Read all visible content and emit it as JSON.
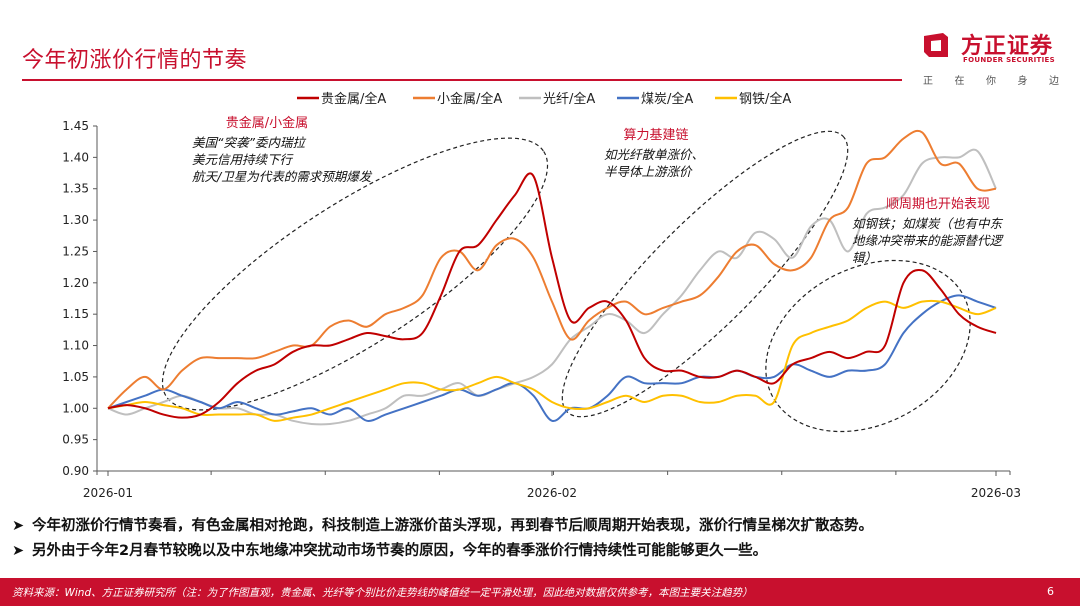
{
  "page": {
    "title": "今年初涨价行情的节奏",
    "logo_text": "方正证券",
    "logo_en": "FOUNDER SECURITIES",
    "slogan": [
      "正",
      "在",
      "你",
      "身",
      "边"
    ],
    "page_number": "6",
    "source_note": "资料来源：Wind、方正证券研究所（注：为了作图直观，贵金属、光纤等个别比价走势线的峰值经一定平滑处理，因此绝对数据仅供参考，本图主要关注趋势）"
  },
  "bullets": [
    "今年初涨价行情节奏看，有色金属相对抢跑，科技制造上游涨价苗头浮现，再到春节后顺周期开始表现，涨价行情呈梯次扩散态势。",
    "另外由于今年2月春节较晚以及中东地缘冲突扰动市场节奏的原因，今年的春季涨价行情持续性可能能够更久一些。"
  ],
  "colors": {
    "brand": "#c8102e",
    "precious": "#c00000",
    "minor": "#ed7d31",
    "fiber": "#bfbfbf",
    "coal": "#4472c4",
    "steel": "#ffc000"
  },
  "chart_data": {
    "type": "line",
    "title": "",
    "xlabel": "",
    "ylabel": "",
    "ylim": [
      0.9,
      1.45
    ],
    "yticks": [
      "1.45",
      "1.40",
      "1.35",
      "1.30",
      "1.25",
      "1.20",
      "1.15",
      "1.10",
      "1.05",
      "1.00",
      "0.95",
      "0.90"
    ],
    "xlim": [
      0,
      48
    ],
    "xticks": [
      {
        "label": "2026-01",
        "x": 0
      },
      {
        "label": "2026-02",
        "x": 24
      },
      {
        "label": "2026-03",
        "x": 48
      }
    ],
    "x": [
      0,
      1,
      2,
      3,
      4,
      5,
      6,
      7,
      8,
      9,
      10,
      11,
      12,
      13,
      14,
      15,
      16,
      17,
      18,
      19,
      20,
      21,
      22,
      23,
      24,
      25,
      26,
      27,
      28,
      29,
      30,
      31,
      32,
      33,
      34,
      35,
      36,
      37,
      38,
      39,
      40,
      41,
      42,
      43,
      44,
      45,
      46,
      47,
      48
    ],
    "series": [
      {
        "name": "贵金属/全A",
        "color_key": "precious",
        "values": [
          1.0,
          1.005,
          1.0,
          0.99,
          0.985,
          0.99,
          1.01,
          1.04,
          1.06,
          1.07,
          1.09,
          1.1,
          1.1,
          1.11,
          1.12,
          1.115,
          1.11,
          1.12,
          1.18,
          1.25,
          1.26,
          1.3,
          1.34,
          1.37,
          1.24,
          1.14,
          1.16,
          1.17,
          1.14,
          1.08,
          1.06,
          1.06,
          1.05,
          1.05,
          1.06,
          1.05,
          1.04,
          1.07,
          1.08,
          1.09,
          1.08,
          1.09,
          1.1,
          1.2,
          1.22,
          1.19,
          1.15,
          1.13,
          1.12
        ]
      },
      {
        "name": "小金属/全A",
        "color_key": "minor",
        "values": [
          1.0,
          1.03,
          1.05,
          1.03,
          1.06,
          1.08,
          1.08,
          1.08,
          1.08,
          1.09,
          1.1,
          1.1,
          1.13,
          1.14,
          1.13,
          1.15,
          1.16,
          1.18,
          1.24,
          1.25,
          1.22,
          1.26,
          1.27,
          1.24,
          1.17,
          1.11,
          1.14,
          1.16,
          1.17,
          1.15,
          1.16,
          1.17,
          1.18,
          1.21,
          1.25,
          1.26,
          1.23,
          1.22,
          1.24,
          1.3,
          1.32,
          1.39,
          1.4,
          1.43,
          1.44,
          1.39,
          1.39,
          1.35,
          1.35
        ]
      },
      {
        "name": "光纤/全A",
        "color_key": "fiber",
        "values": [
          1.0,
          0.99,
          1.0,
          1.01,
          1.02,
          1.01,
          1.0,
          1.0,
          0.99,
          0.99,
          0.98,
          0.975,
          0.975,
          0.98,
          0.99,
          1.0,
          1.02,
          1.02,
          1.03,
          1.04,
          1.02,
          1.03,
          1.04,
          1.05,
          1.07,
          1.11,
          1.13,
          1.15,
          1.14,
          1.12,
          1.15,
          1.18,
          1.22,
          1.25,
          1.24,
          1.28,
          1.27,
          1.24,
          1.29,
          1.3,
          1.25,
          1.31,
          1.32,
          1.34,
          1.39,
          1.4,
          1.4,
          1.41,
          1.35
        ]
      },
      {
        "name": "煤炭/全A",
        "color_key": "coal",
        "values": [
          1.0,
          1.01,
          1.02,
          1.03,
          1.02,
          1.01,
          1.0,
          1.01,
          1.0,
          0.99,
          0.995,
          1.0,
          0.99,
          1.0,
          0.98,
          0.99,
          1.0,
          1.01,
          1.02,
          1.03,
          1.02,
          1.03,
          1.04,
          1.02,
          0.98,
          1.0,
          1.0,
          1.02,
          1.05,
          1.04,
          1.04,
          1.04,
          1.05,
          1.05,
          1.06,
          1.05,
          1.05,
          1.07,
          1.06,
          1.05,
          1.06,
          1.06,
          1.07,
          1.12,
          1.15,
          1.17,
          1.18,
          1.17,
          1.16
        ]
      },
      {
        "name": "钢铁/全A",
        "color_key": "steel",
        "values": [
          1.0,
          1.005,
          1.01,
          1.005,
          1.0,
          0.99,
          0.99,
          0.99,
          0.99,
          0.98,
          0.985,
          0.99,
          1.0,
          1.01,
          1.02,
          1.03,
          1.04,
          1.04,
          1.03,
          1.03,
          1.04,
          1.05,
          1.04,
          1.03,
          1.01,
          1.0,
          1.0,
          1.01,
          1.02,
          1.01,
          1.02,
          1.02,
          1.01,
          1.01,
          1.02,
          1.02,
          1.01,
          1.1,
          1.12,
          1.13,
          1.14,
          1.16,
          1.17,
          1.16,
          1.17,
          1.17,
          1.16,
          1.15,
          1.16
        ]
      }
    ],
    "annotations": [
      {
        "name": "precious",
        "title": "贵金属/小金属",
        "lines": [
          "美国“突袭”委内瑞拉",
          "美元信用持续下行",
          "航天/卫星为代表的需求预期爆发"
        ]
      },
      {
        "name": "computing",
        "title": "算力基建链",
        "lines": [
          "如光纤散单涨价、",
          "半导体上游涨价"
        ]
      },
      {
        "name": "cyclical",
        "title": "顺周期也开始表现",
        "lines": [
          "如钢铁；如煤炭（也有中东",
          "地缘冲突带来的能源替代逻",
          "辑）"
        ]
      }
    ]
  }
}
